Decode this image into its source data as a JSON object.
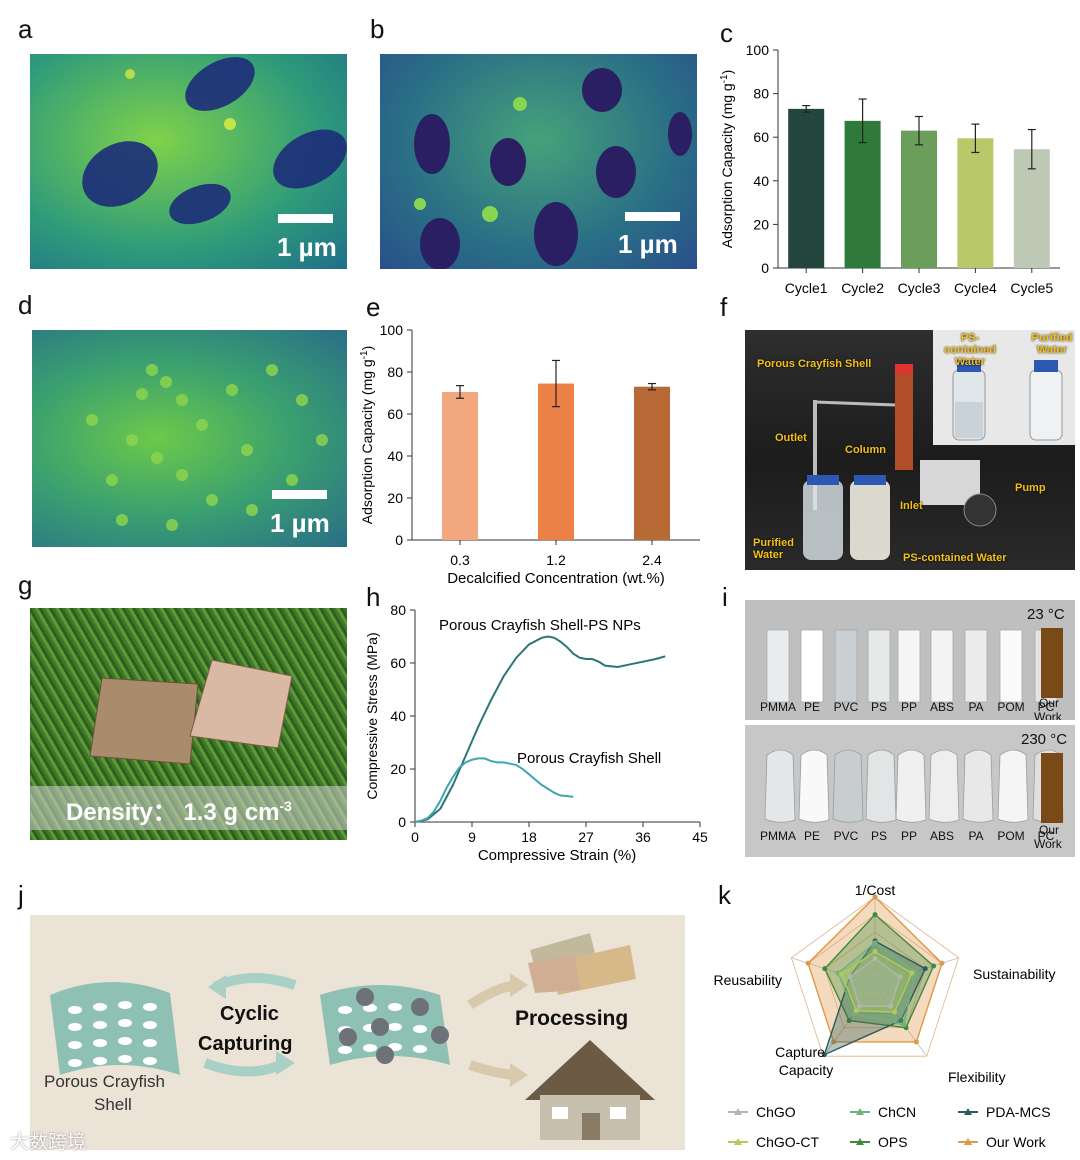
{
  "panels": {
    "a": "a",
    "b": "b",
    "c": "c",
    "d": "d",
    "e": "e",
    "f": "f",
    "g": "g",
    "h": "h",
    "i": "i",
    "j": "j",
    "k": "k"
  },
  "sem": {
    "a_scale": "1 µm",
    "b_scale": "1 µm",
    "d_scale": "1 µm"
  },
  "chart_data": [
    {
      "panel": "c",
      "type": "bar",
      "categories": [
        "Cycle1",
        "Cycle2",
        "Cycle3",
        "Cycle4",
        "Cycle5"
      ],
      "values": [
        73,
        67.5,
        63,
        59.5,
        54.5
      ],
      "errors": [
        1.5,
        10,
        6.5,
        6.5,
        9
      ],
      "ylabel": "Adsorption Capacity (mg g-1)",
      "ylim": [
        0,
        100
      ],
      "yticks": [
        "0",
        "20",
        "40",
        "60",
        "80",
        "100"
      ],
      "colors": [
        "#24453d",
        "#2f7a3a",
        "#6b9e5b",
        "#b9c96a",
        "#bdc9b5"
      ]
    },
    {
      "panel": "e",
      "type": "bar",
      "categories": [
        "0.3",
        "1.2",
        "2.4"
      ],
      "values": [
        70.5,
        74.5,
        73
      ],
      "errors": [
        3,
        11,
        1.5
      ],
      "xlabel": "Decalcified Concentration (wt.%)",
      "ylabel": "Adsorption Capacity (mg g-1)",
      "ylim": [
        0,
        100
      ],
      "yticks": [
        "0",
        "20",
        "40",
        "60",
        "80",
        "100"
      ],
      "colors": [
        "#f3a77e",
        "#ec8147",
        "#b86a36"
      ]
    },
    {
      "panel": "h",
      "type": "line",
      "xlabel": "Compressive Strain (%)",
      "ylabel": "Compressive Stress (MPa)",
      "xlim": [
        0,
        45
      ],
      "ylim": [
        0,
        80
      ],
      "xticks": [
        "0",
        "9",
        "18",
        "27",
        "36",
        "45"
      ],
      "yticks": [
        "0",
        "20",
        "40",
        "60",
        "80"
      ],
      "series": [
        {
          "name": "Porous Crayfish Shell-PS NPs",
          "x": [
            0,
            2,
            4,
            6,
            8,
            10,
            12,
            14,
            16,
            18,
            20,
            21,
            22,
            23,
            24,
            25,
            26,
            27,
            28,
            29,
            30,
            32,
            34,
            36,
            38,
            39.5
          ],
          "y": [
            0,
            1,
            5,
            14,
            25,
            36,
            46,
            55,
            62,
            67,
            69.5,
            70,
            69.5,
            68,
            66,
            63.5,
            62,
            61.5,
            61.5,
            60.5,
            59,
            58.5,
            59.5,
            60.5,
            61.5,
            62.5
          ]
        },
        {
          "name": "Porous Crayfish Shell",
          "x": [
            0,
            1,
            2,
            3,
            4,
            5,
            6,
            7,
            8,
            9,
            10,
            11,
            12,
            13,
            14,
            15,
            16,
            17,
            18,
            19,
            20,
            21,
            22,
            23,
            24,
            25
          ],
          "y": [
            0,
            0.5,
            1.5,
            4,
            8,
            13,
            17,
            20.5,
            22.5,
            23.5,
            24,
            24,
            23,
            22.5,
            22.5,
            22,
            21.5,
            20,
            18,
            16,
            14,
            12.5,
            11,
            10,
            9.8,
            9.5
          ]
        }
      ]
    },
    {
      "panel": "k",
      "type": "radar",
      "axes": [
        "1/Cost",
        "Sustainability",
        "Flexibility",
        "Capture Capacity",
        "Reusability"
      ],
      "levels": 5,
      "series": [
        {
          "name": "ChGO",
          "values": [
            1.5,
            1.5,
            1.5,
            1.5,
            1.5
          ],
          "color": "#b0b8ad"
        },
        {
          "name": "ChCN",
          "values": [
            2.4,
            2.4,
            2.8,
            2.0,
            2.2
          ],
          "color": "#6db37b"
        },
        {
          "name": "PDA-MCS",
          "values": [
            2.5,
            3.0,
            2.5,
            4.9,
            1.5
          ],
          "color": "#2b5d58"
        },
        {
          "name": "ChGO-CT",
          "values": [
            1.9,
            2.2,
            1.9,
            1.8,
            2.0
          ],
          "color": "#b5c95d"
        },
        {
          "name": "OPS",
          "values": [
            4.0,
            3.5,
            3.0,
            2.5,
            3.0
          ],
          "color": "#3f8b3d"
        },
        {
          "name": "Our Work",
          "values": [
            5,
            4,
            4,
            4,
            4
          ],
          "color": "#e09749"
        }
      ]
    }
  ],
  "fig_f": {
    "porous_crayfish_shell": "Porous Crayfish Shell",
    "outlet": "Outlet",
    "column": "Column",
    "inlet": "Inlet",
    "pump": "Pump",
    "purified_water": "Purified Water",
    "ps_water": "PS-contained Water",
    "ps_contained_water_inset": "PS-contained Water",
    "purified_water_inset": "Purified Water"
  },
  "fig_g": {
    "density": "Density： 1.3 g cm",
    "exp": "-3"
  },
  "fig_h": {
    "label_top": "Porous Crayfish Shell-PS NPs",
    "label_bottom": "Porous Crayfish Shell"
  },
  "fig_i": {
    "temp_top": "23 °C",
    "temp_bottom": "230 °C",
    "samples": [
      "PMMA",
      "PE",
      "PVC",
      "PS",
      "PP",
      "ABS",
      "PA",
      "POM",
      "PC"
    ],
    "our": "Our",
    "work": "Work"
  },
  "fig_j": {
    "cyclic": "Cyclic",
    "capturing": "Capturing",
    "processing": "Processing",
    "shell_line1": "Porous Crayfish",
    "shell_line2": "Shell"
  },
  "watermark": "大数跨境"
}
